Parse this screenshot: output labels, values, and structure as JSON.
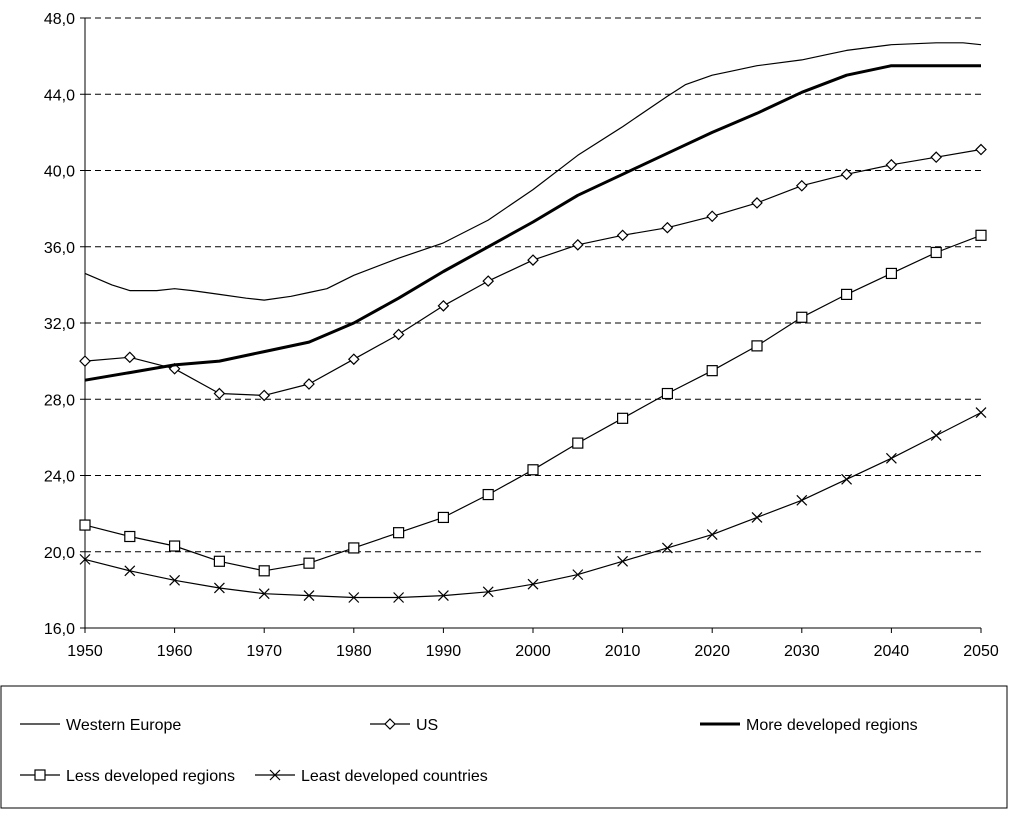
{
  "chart_data": {
    "type": "line",
    "title": "",
    "xlabel": "",
    "ylabel": "",
    "xlim": [
      1950,
      2050
    ],
    "ylim": [
      16,
      48
    ],
    "x_ticks": [
      1950,
      1960,
      1970,
      1980,
      1990,
      2000,
      2010,
      2020,
      2030,
      2040,
      2050
    ],
    "y_ticks": [
      16.0,
      20.0,
      24.0,
      28.0,
      32.0,
      36.0,
      40.0,
      44.0,
      48.0
    ],
    "y_tick_labels": [
      "16,0",
      "20,0",
      "24,0",
      "28,0",
      "32,0",
      "36,0",
      "40,0",
      "44,0",
      "48,0"
    ],
    "grid": "horizontal dashed",
    "legend_position": "bottom",
    "series": [
      {
        "name": "Western Europe",
        "marker": "none",
        "line_width": "thin",
        "x": [
          1950,
          1953,
          1955,
          1958,
          1960,
          1962,
          1965,
          1968,
          1970,
          1973,
          1975,
          1977,
          1980,
          1985,
          1990,
          1995,
          2000,
          2005,
          2010,
          2015,
          2017,
          2020,
          2022,
          2025,
          2030,
          2033,
          2035,
          2040,
          2045,
          2048,
          2050
        ],
        "values": [
          34.6,
          34.0,
          33.7,
          33.7,
          33.8,
          33.7,
          33.5,
          33.3,
          33.2,
          33.4,
          33.6,
          33.8,
          34.5,
          35.4,
          36.2,
          37.4,
          39.0,
          40.8,
          42.3,
          43.9,
          44.5,
          45.0,
          45.2,
          45.5,
          45.8,
          46.1,
          46.3,
          46.6,
          46.7,
          46.7,
          46.6
        ]
      },
      {
        "name": "US",
        "marker": "diamond",
        "line_width": "thin",
        "x": [
          1950,
          1955,
          1960,
          1965,
          1970,
          1975,
          1980,
          1985,
          1990,
          1995,
          2000,
          2005,
          2010,
          2015,
          2020,
          2025,
          2030,
          2035,
          2040,
          2045,
          2050
        ],
        "values": [
          30.0,
          30.2,
          29.6,
          28.3,
          28.2,
          28.8,
          30.1,
          31.4,
          32.9,
          34.2,
          35.3,
          36.1,
          36.6,
          37.0,
          37.6,
          38.3,
          39.2,
          39.8,
          40.3,
          40.7,
          41.1
        ]
      },
      {
        "name": "More developed regions",
        "marker": "none",
        "line_width": "thick",
        "x": [
          1950,
          1955,
          1960,
          1965,
          1970,
          1975,
          1980,
          1985,
          1990,
          1995,
          2000,
          2005,
          2010,
          2015,
          2020,
          2025,
          2030,
          2035,
          2040,
          2045,
          2050
        ],
        "values": [
          29.0,
          29.4,
          29.8,
          30.0,
          30.5,
          31.0,
          32.0,
          33.3,
          34.7,
          36.0,
          37.3,
          38.7,
          39.8,
          40.9,
          42.0,
          43.0,
          44.1,
          45.0,
          45.5,
          45.5,
          45.5
        ]
      },
      {
        "name": "Less developed regions",
        "marker": "square",
        "line_width": "thin",
        "x": [
          1950,
          1955,
          1960,
          1965,
          1970,
          1975,
          1980,
          1985,
          1990,
          1995,
          2000,
          2005,
          2010,
          2015,
          2020,
          2025,
          2030,
          2035,
          2040,
          2045,
          2050
        ],
        "values": [
          21.4,
          20.8,
          20.3,
          19.5,
          19.0,
          19.4,
          20.2,
          21.0,
          21.8,
          23.0,
          24.3,
          25.7,
          27.0,
          28.3,
          29.5,
          30.8,
          32.3,
          33.5,
          34.6,
          35.7,
          36.6
        ]
      },
      {
        "name": "Least developed countries",
        "marker": "x",
        "line_width": "thin",
        "x": [
          1950,
          1955,
          1960,
          1965,
          1970,
          1975,
          1980,
          1985,
          1990,
          1995,
          2000,
          2005,
          2010,
          2015,
          2020,
          2025,
          2030,
          2035,
          2040,
          2045,
          2050
        ],
        "values": [
          19.6,
          19.0,
          18.5,
          18.1,
          17.8,
          17.7,
          17.6,
          17.6,
          17.7,
          17.9,
          18.3,
          18.8,
          19.5,
          20.2,
          20.9,
          21.8,
          22.7,
          23.8,
          24.9,
          26.1,
          27.3
        ]
      }
    ]
  },
  "colors": {
    "line": "#000000",
    "grid": "#000000",
    "background": "#ffffff"
  }
}
